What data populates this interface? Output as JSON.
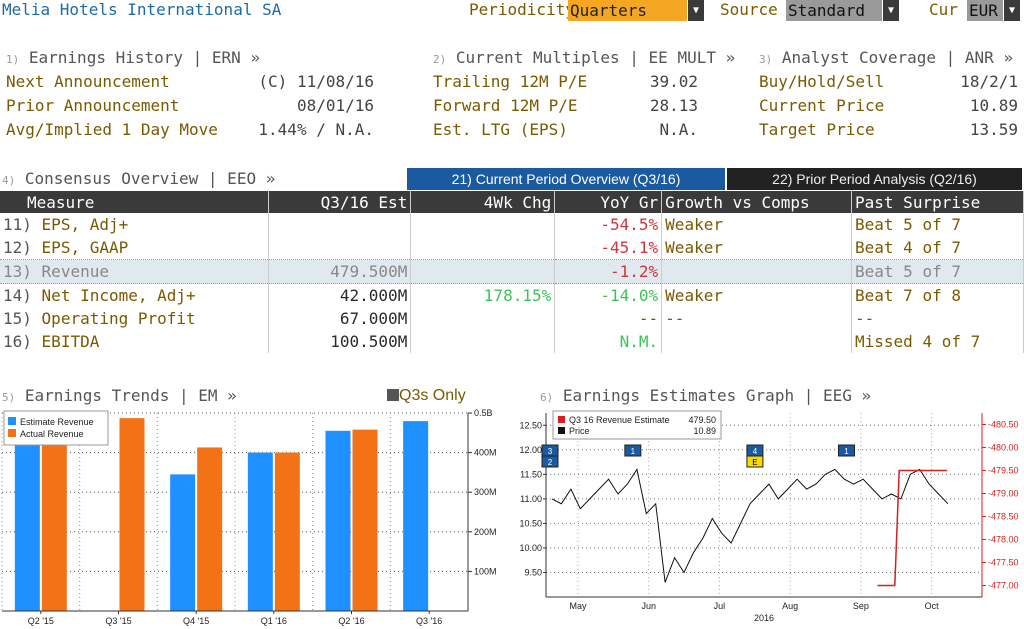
{
  "header": {
    "title": "Melia Hotels International SA",
    "periodicity_label": "Periodicity",
    "periodicity_value": "Quarters",
    "source_label": "Source",
    "source_value": "Standard",
    "cur_label": "Cur",
    "cur_value": "EUR"
  },
  "earnings_history": {
    "num": "1)",
    "title": "Earnings History | ERN »",
    "rows": [
      {
        "label": "Next Announcement",
        "value": "(C)  11/08/16"
      },
      {
        "label": "Prior Announcement",
        "value": "08/01/16"
      },
      {
        "label": "Avg/Implied 1 Day Move",
        "value": "1.44% / N.A."
      }
    ]
  },
  "current_multiples": {
    "num": "2)",
    "title": "Current Multiples | EE MULT »",
    "rows": [
      {
        "label": "Trailing 12M P/E",
        "value": "39.02"
      },
      {
        "label": "Forward 12M P/E",
        "value": "28.13"
      },
      {
        "label": "Est. LTG (EPS)",
        "value": "N.A."
      }
    ]
  },
  "analyst_coverage": {
    "num": "3)",
    "title": "Analyst Coverage | ANR »",
    "rows": [
      {
        "label": "Buy/Hold/Sell",
        "value": "18/2/1"
      },
      {
        "label": "Current Price",
        "value": "10.89"
      },
      {
        "label": "Target Price",
        "value": "13.59"
      }
    ]
  },
  "consensus": {
    "num": "4)",
    "title": "Consensus Overview | EEO »",
    "tab_active": "21) Current Period Overview (Q3/16)",
    "tab_inactive": "22) Prior Period Analysis (Q2/16)",
    "columns": [
      "Measure",
      "Q3/16 Est",
      "4Wk Chg",
      "YoY Gr",
      "Growth vs Comps",
      "Past Surprise"
    ],
    "rows": [
      {
        "num": "11)",
        "measure": "EPS, Adj+",
        "est": "",
        "chg": "",
        "yoy": "-54.5%",
        "growth": "Weaker",
        "surprise": "Beat 5 of 7"
      },
      {
        "num": "12)",
        "measure": "EPS, GAAP",
        "est": "",
        "chg": "",
        "yoy": "-45.1%",
        "growth": "Weaker",
        "surprise": "Beat 4 of 7"
      },
      {
        "num": "13)",
        "measure": "Revenue",
        "est": "479.500M",
        "chg": "",
        "yoy": "-1.2%",
        "growth": "",
        "surprise": "Beat 5 of 7"
      },
      {
        "num": "14)",
        "measure": "Net Income, Adj+",
        "est": "42.000M",
        "chg": "178.15%",
        "yoy": "-14.0%",
        "growth": "Weaker",
        "surprise": "Beat 7 of 8"
      },
      {
        "num": "15)",
        "measure": "Operating Profit",
        "est": "67.000M",
        "chg": "",
        "yoy": "--",
        "growth": "--",
        "surprise": "--"
      },
      {
        "num": "16)",
        "measure": "EBITDA",
        "est": "100.500M",
        "chg": "",
        "yoy": "N.M.",
        "growth": "",
        "surprise": "Missed 4 of 7"
      }
    ]
  },
  "earnings_trends": {
    "num": "5)",
    "title": "Earnings Trends | EM »",
    "toggle": "Q3s Only"
  },
  "estimates_graph": {
    "num": "6)",
    "title": "Earnings Estimates Graph | EEG »"
  },
  "colors": {
    "estimate": "#1e90ff",
    "actual": "#f47216",
    "price": "#111111",
    "est_line": "#d81e1e",
    "accent_blue": "#1a5aa0"
  },
  "chart_data": [
    {
      "type": "bar",
      "legend": [
        "Estimate Revenue",
        "Actual Revenue"
      ],
      "categories": [
        "Q2 '15",
        "Q3 '15",
        "Q4 '15",
        "Q1 '16",
        "Q2 '16",
        "Q3 '16"
      ],
      "series": [
        {
          "name": "Estimate Revenue",
          "values": [
            480,
            null,
            345,
            400,
            455,
            479.5
          ]
        },
        {
          "name": "Actual Revenue",
          "values": [
            483,
            487,
            413,
            400,
            458,
            null
          ]
        }
      ],
      "ylim": [
        0,
        500
      ],
      "y_ticks": [
        "0.5B",
        "400M",
        "300M",
        "200M",
        "100M"
      ],
      "legend_position": "top-left",
      "grid": true
    },
    {
      "type": "line",
      "legend": [
        {
          "label": "Q3 16 Revenue Estimate",
          "value": "479.50"
        },
        {
          "label": "Price",
          "value": "10.89"
        }
      ],
      "x_ticks": [
        "May",
        "Jun",
        "Jul",
        "Aug",
        "Sep",
        "Oct"
      ],
      "x_year": "2016",
      "left_axis_ticks": [
        "12.50",
        "12.00",
        "11.50",
        "11.00",
        "10.50",
        "10.00",
        "9.50"
      ],
      "left_ylim": [
        9.0,
        12.75
      ],
      "right_axis_ticks": [
        "480.50",
        "480.00",
        "479.50",
        "479.00",
        "478.50",
        "478.00",
        "477.50",
        "477.00"
      ],
      "right_ylim": [
        476.75,
        480.75
      ],
      "markers": [
        {
          "label": "3",
          "x": 0.0
        },
        {
          "label": "2",
          "x": 0.0
        },
        {
          "label": "1",
          "x": 0.19
        },
        {
          "label": "4",
          "x": 0.47
        },
        {
          "label": "E",
          "x": 0.47
        },
        {
          "label": "1",
          "x": 0.68
        }
      ],
      "price_series": [
        11.0,
        10.9,
        11.2,
        10.8,
        11.0,
        11.2,
        11.4,
        11.1,
        11.3,
        11.6,
        10.7,
        10.9,
        9.3,
        9.8,
        9.5,
        9.9,
        10.2,
        10.6,
        10.3,
        10.1,
        10.5,
        10.9,
        11.1,
        11.3,
        11.0,
        11.2,
        11.4,
        11.2,
        11.3,
        11.5,
        11.6,
        11.4,
        11.3,
        11.4,
        11.2,
        11.0,
        11.1,
        11.0,
        11.5,
        11.6,
        11.3,
        11.1,
        10.9
      ],
      "estimate_series": [
        {
          "x": 0.76,
          "y": 477.0
        },
        {
          "x": 0.8,
          "y": 477.0
        },
        {
          "x": 0.81,
          "y": 479.5
        },
        {
          "x": 0.92,
          "y": 479.5
        }
      ],
      "grid": true
    }
  ]
}
